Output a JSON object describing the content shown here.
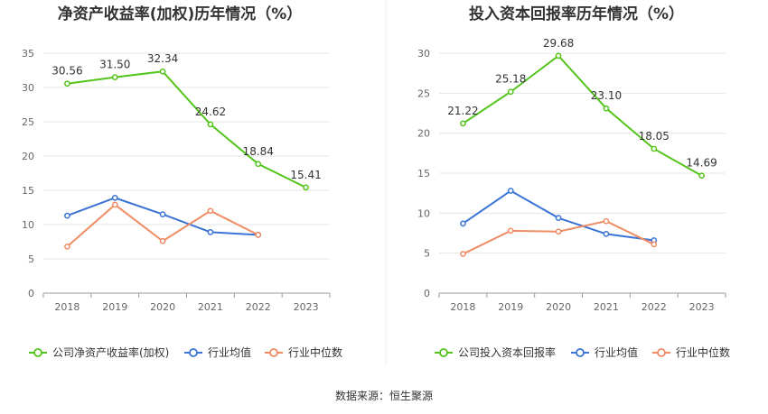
{
  "source_text": "数据来源：恒生聚源",
  "colors": {
    "company": "#52c41a",
    "industry_avg": "#3b73d6",
    "industry_median": "#f08c64",
    "grid": "#e6e6e6",
    "axis": "#999999"
  },
  "chart_data": [
    {
      "type": "line",
      "title": "净资产收益率(加权)历年情况（%）",
      "categories": [
        "2018",
        "2019",
        "2020",
        "2021",
        "2022",
        "2023"
      ],
      "ylim": [
        0,
        35
      ],
      "yticks": [
        0,
        5,
        10,
        15,
        20,
        25,
        30,
        35
      ],
      "grid": true,
      "legend_position": "bottom-left",
      "series": [
        {
          "name": "公司净资产收益率(加权)",
          "color_key": "company",
          "values": [
            30.56,
            31.5,
            32.34,
            24.62,
            18.84,
            15.41
          ],
          "labels": [
            "30.56",
            "31.50",
            "32.34",
            "24.62",
            "18.84",
            "15.41"
          ]
        },
        {
          "name": "行业均值",
          "color_key": "industry_avg",
          "values": [
            11.3,
            13.9,
            11.5,
            8.9,
            8.5,
            null
          ]
        },
        {
          "name": "行业中位数",
          "color_key": "industry_median",
          "values": [
            6.8,
            12.9,
            7.6,
            12.0,
            8.5,
            null
          ]
        }
      ]
    },
    {
      "type": "line",
      "title": "投入资本回报率历年情况（%）",
      "categories": [
        "2018",
        "2019",
        "2020",
        "2021",
        "2022",
        "2023"
      ],
      "ylim": [
        0,
        30
      ],
      "yticks": [
        0,
        5,
        10,
        15,
        20,
        25,
        30
      ],
      "grid": true,
      "legend_position": "bottom-left",
      "series": [
        {
          "name": "公司投入资本回报率",
          "color_key": "company",
          "values": [
            21.22,
            25.18,
            29.68,
            23.1,
            18.05,
            14.69
          ],
          "labels": [
            "21.22",
            "25.18",
            "29.68",
            "23.10",
            "18.05",
            "14.69"
          ]
        },
        {
          "name": "行业均值",
          "color_key": "industry_avg",
          "values": [
            8.7,
            12.8,
            9.4,
            7.4,
            6.6,
            null
          ]
        },
        {
          "name": "行业中位数",
          "color_key": "industry_median",
          "values": [
            4.9,
            7.8,
            7.7,
            9.0,
            6.1,
            null
          ]
        }
      ]
    }
  ]
}
